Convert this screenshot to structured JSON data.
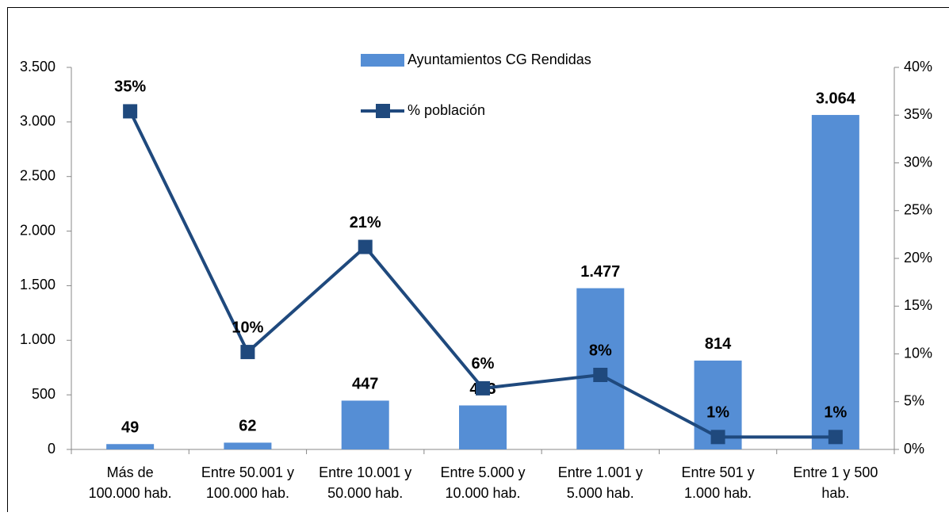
{
  "chart_data": {
    "type": "bar",
    "categories": [
      [
        "Más de",
        "100.000 hab."
      ],
      [
        "Entre 50.001 y",
        "100.000 hab."
      ],
      [
        "Entre 10.001 y",
        "50.000 hab."
      ],
      [
        "Entre 5.000 y",
        "10.000 hab."
      ],
      [
        "Entre 1.001 y",
        "5.000 hab."
      ],
      [
        "Entre 501 y",
        "1.000 hab."
      ],
      [
        "Entre 1 y 500",
        "hab."
      ]
    ],
    "series": [
      {
        "name": "Ayuntamientos CG Rendidas",
        "type": "bar",
        "color": "#558ed5",
        "values": [
          49,
          62,
          447,
          403,
          1477,
          814,
          3064
        ],
        "value_labels": [
          "49",
          "62",
          "447",
          "403",
          "1.477",
          "814",
          "3.064"
        ]
      },
      {
        "name": "% población",
        "type": "line",
        "axis": "y2",
        "color": "#1f497d",
        "values": [
          35.4,
          10.2,
          21.2,
          6.4,
          7.8,
          1.3,
          1.3
        ],
        "value_labels": [
          "35%",
          "10%",
          "21%",
          "6%",
          "8%",
          "1%",
          "1%"
        ]
      }
    ],
    "ylim": [
      0,
      3500
    ],
    "yticks": [
      0,
      500,
      {
        "value": 1000,
        "label": "1.000"
      },
      {
        "value": 1500,
        "label": "1.500"
      },
      {
        "value": 2000,
        "label": "2.000"
      },
      {
        "value": 2500,
        "label": "2.500"
      },
      {
        "value": 3000,
        "label": "3.000"
      },
      {
        "value": 3500,
        "label": "3.500"
      }
    ],
    "y2lim": [
      0,
      40
    ],
    "y2ticks": [
      {
        "value": 0,
        "label": "0%"
      },
      {
        "value": 5,
        "label": "5%"
      },
      {
        "value": 10,
        "label": "10%"
      },
      {
        "value": 15,
        "label": "15%"
      },
      {
        "value": 20,
        "label": "20%"
      },
      {
        "value": 25,
        "label": "25%"
      },
      {
        "value": 30,
        "label": "30%"
      },
      {
        "value": 35,
        "label": "35%"
      },
      {
        "value": 40,
        "label": "40%"
      }
    ],
    "legend": "top"
  }
}
